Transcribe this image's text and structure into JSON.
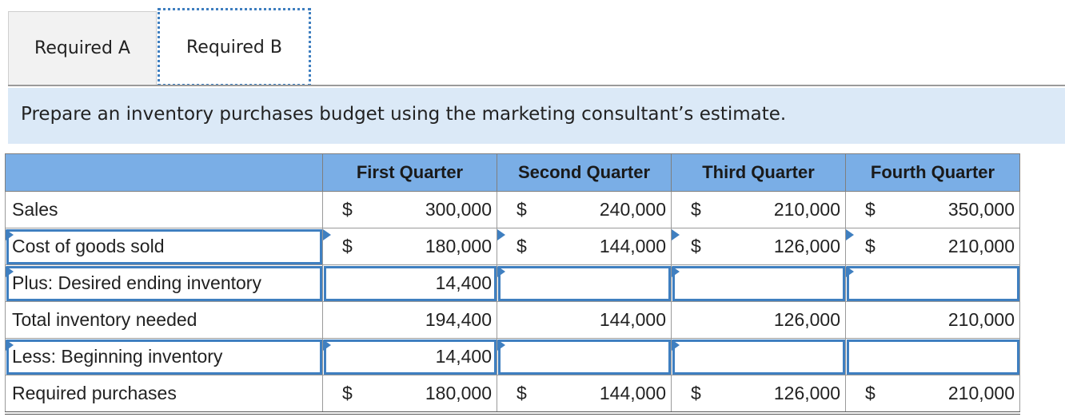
{
  "tabs": [
    {
      "label": "Required A"
    },
    {
      "label": "Required B"
    }
  ],
  "instruction": "Prepare an inventory purchases budget using the marketing consultant’s estimate.",
  "table": {
    "headers": [
      "",
      "First Quarter",
      "Second Quarter",
      "Third Quarter",
      "Fourth Quarter"
    ],
    "rows": [
      {
        "label": "Sales",
        "cells": [
          {
            "cur": "$",
            "val": "300,000"
          },
          {
            "cur": "$",
            "val": "240,000"
          },
          {
            "cur": "$",
            "val": "210,000"
          },
          {
            "cur": "$",
            "val": "350,000"
          }
        ]
      },
      {
        "label": "Cost of goods sold",
        "cells": [
          {
            "cur": "$",
            "val": "180,000"
          },
          {
            "cur": "$",
            "val": "144,000"
          },
          {
            "cur": "$",
            "val": "126,000"
          },
          {
            "cur": "$",
            "val": "210,000"
          }
        ]
      },
      {
        "label": "Plus: Desired ending inventory",
        "cells": [
          {
            "cur": "",
            "val": "14,400"
          },
          {
            "cur": "",
            "val": ""
          },
          {
            "cur": "",
            "val": ""
          },
          {
            "cur": "",
            "val": ""
          }
        ]
      },
      {
        "label": "Total inventory needed",
        "cells": [
          {
            "cur": "",
            "val": "194,400"
          },
          {
            "cur": "",
            "val": "144,000"
          },
          {
            "cur": "",
            "val": "126,000"
          },
          {
            "cur": "",
            "val": "210,000"
          }
        ]
      },
      {
        "label": "Less: Beginning inventory",
        "cells": [
          {
            "cur": "",
            "val": "14,400"
          },
          {
            "cur": "",
            "val": ""
          },
          {
            "cur": "",
            "val": ""
          },
          {
            "cur": "",
            "val": ""
          }
        ]
      },
      {
        "label": "Required purchases",
        "cells": [
          {
            "cur": "$",
            "val": "180,000"
          },
          {
            "cur": "$",
            "val": "144,000"
          },
          {
            "cur": "$",
            "val": "126,000"
          },
          {
            "cur": "$",
            "val": "210,000"
          }
        ]
      }
    ]
  },
  "colors": {
    "header_bg": "#7aaee6",
    "instruction_bg": "#dbe9f7",
    "focus_blue": "#3f7fc0"
  }
}
